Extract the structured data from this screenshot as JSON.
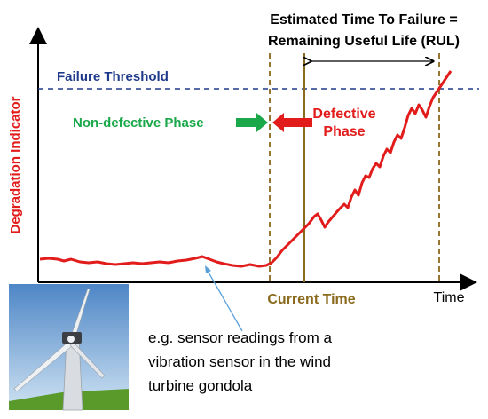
{
  "title_line1": "Estimated Time To Failure =",
  "title_line2": "Remaining Useful Life (RUL)",
  "failure_threshold_label": "Failure Threshold",
  "y_axis_label": "Degradation Indicator",
  "non_defective_label": "Non-defective Phase",
  "defective_label_line1": "Defective",
  "defective_label_line2": "Phase",
  "current_time_label": "Current Time",
  "x_axis_label": "Time",
  "caption_line1": "e.g. sensor readings from a",
  "caption_line2": "vibration sensor in the wind",
  "caption_line3": "turbine gondola",
  "colors": {
    "threshold": "#1f3a8a",
    "signal": "#e21b1b",
    "marker": "#8a6a1c",
    "non_defective": "#1aa84a",
    "defective": "#e21b1b",
    "leader": "#5aa0d8"
  },
  "icons": {
    "non_defective_arrow": "green-right-arrow",
    "defective_arrow": "red-left-arrow",
    "turbine": "wind-turbine-photo"
  }
}
